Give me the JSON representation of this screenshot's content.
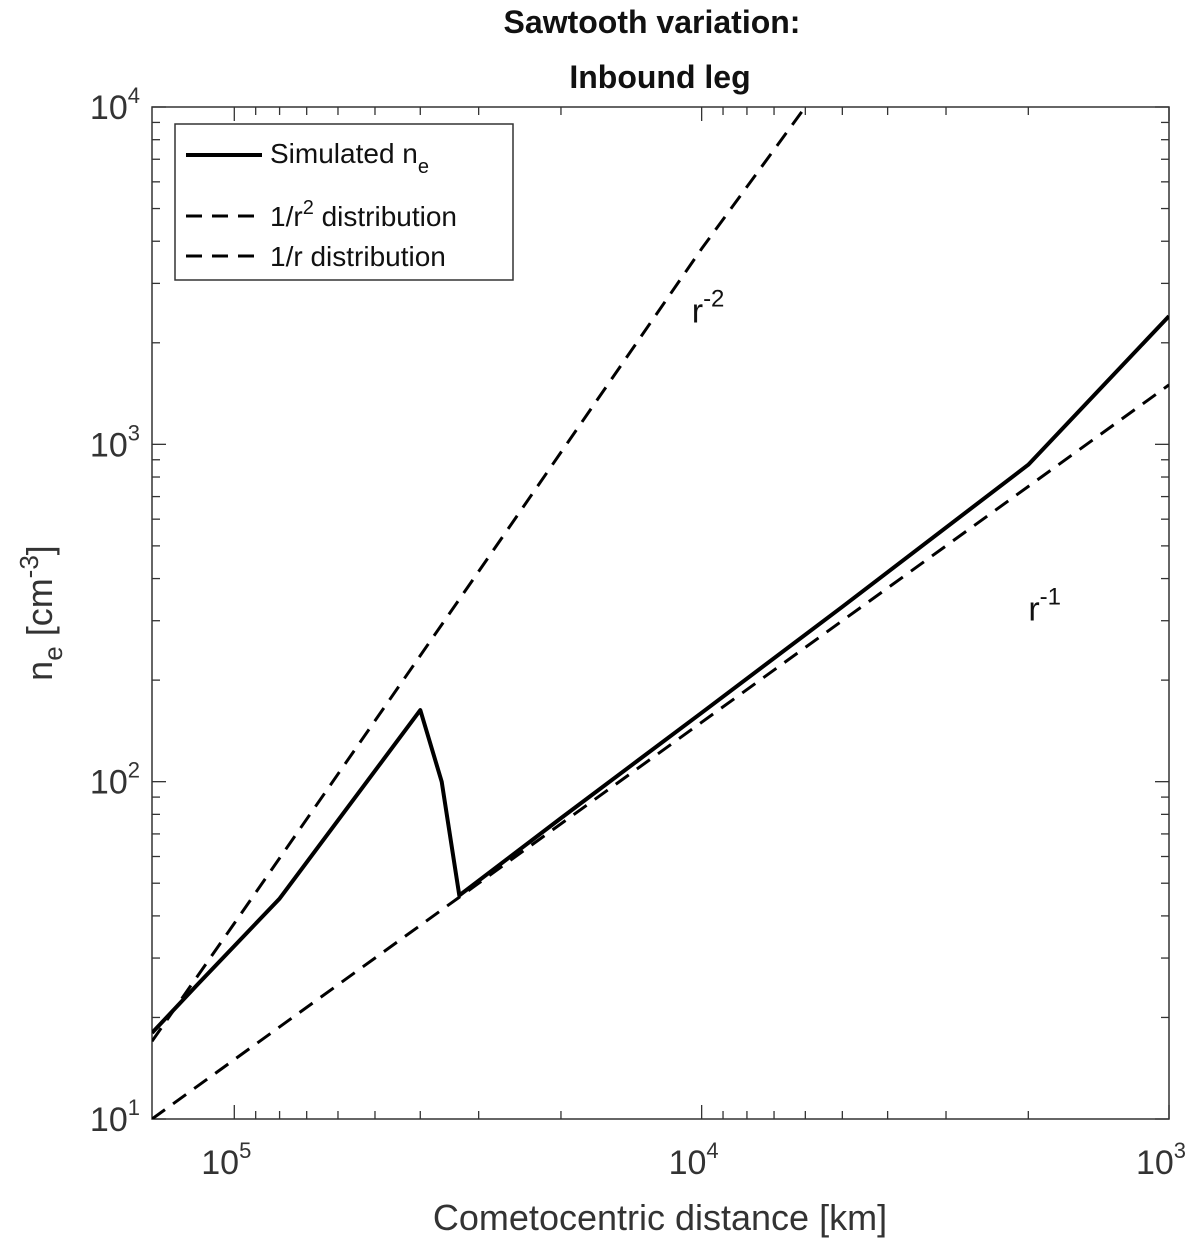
{
  "chart_data": {
    "type": "line",
    "title_line1": "Sawtooth variation:",
    "title_line2": "Inbound leg",
    "xlabel": "Cometocentric distance [km]",
    "ylabel": {
      "base": "n",
      "sub": "e",
      "unit_open": " [cm",
      "sup": "-3",
      "unit_close": "]"
    },
    "x_scale": "log",
    "x_reversed": true,
    "xlim": [
      150000,
      1000
    ],
    "y_scale": "log",
    "ylim": [
      10,
      10000
    ],
    "x_ticks": [
      {
        "value": 100000,
        "base": "10",
        "exp": "5"
      },
      {
        "value": 10000,
        "base": "10",
        "exp": "4"
      },
      {
        "value": 1000,
        "base": "10",
        "exp": "3"
      }
    ],
    "y_ticks": [
      {
        "value": 10,
        "base": "10",
        "exp": "1"
      },
      {
        "value": 100,
        "base": "10",
        "exp": "2"
      },
      {
        "value": 1000,
        "base": "10",
        "exp": "3"
      },
      {
        "value": 10000,
        "base": "10",
        "exp": "4"
      }
    ],
    "grid": false,
    "legend_position": "top-left",
    "series": [
      {
        "name": "Simulated n",
        "name_sub": "e",
        "style": "solid",
        "color": "#000000",
        "x": [
          150000,
          120000,
          80000,
          40000,
          36000,
          33000,
          20000,
          10000,
          5000,
          2000,
          1000
        ],
        "y": [
          18,
          25,
          45,
          163,
          100,
          46,
          78,
          160,
          330,
          870,
          2400
        ]
      },
      {
        "name": "1/r",
        "name_sup": "2",
        "name_suffix": " distribution",
        "style": "dashed",
        "color": "#000000",
        "x": [
          150000,
          100000,
          30000,
          10000,
          6000
        ],
        "y": [
          17,
          38,
          420,
          3800,
          10000
        ]
      },
      {
        "name": "1/r distribution",
        "style": "dashed",
        "color": "#000000",
        "x": [
          150000,
          100000,
          30000,
          10000,
          1000
        ],
        "y": [
          10,
          15,
          50,
          150,
          1500
        ]
      }
    ],
    "annotations": [
      {
        "base": "r",
        "sup": "-2",
        "x": 10500,
        "y": 2300
      },
      {
        "base": "r",
        "sup": "-1",
        "x": 2000,
        "y": 300
      }
    ]
  }
}
